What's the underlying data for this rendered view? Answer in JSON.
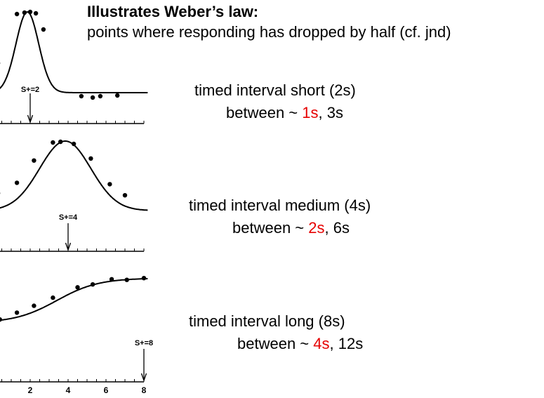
{
  "heading": {
    "title": "Illustrates Weber’s law:",
    "subtitle": "points where responding has dropped by half (cf. jnd)"
  },
  "colors": {
    "highlight": "#e60000",
    "text": "#000000"
  },
  "notes": [
    {
      "line1": "timed interval short (2s)",
      "prefix": "between ~ ",
      "highlight": "1s",
      "suffix": ", 3s"
    },
    {
      "line1": "timed interval medium (4s)",
      "prefix": "between ~ ",
      "highlight": "2s",
      "suffix": ", 6s"
    },
    {
      "line1": "timed interval long (8s)",
      "prefix": "between ~ ",
      "highlight": "4s",
      "suffix": ", 12s"
    }
  ],
  "chart_data": [
    {
      "type": "scatter",
      "marker_label": "S+=2",
      "marker_x": 2,
      "xlim": [
        0,
        8
      ],
      "points": [
        [
          0.3,
          0.27
        ],
        [
          1.3,
          0.97
        ],
        [
          1.7,
          0.99
        ],
        [
          2.0,
          1.0
        ],
        [
          2.3,
          0.98
        ],
        [
          2.7,
          0.75
        ],
        [
          4.7,
          -0.2
        ],
        [
          5.3,
          -0.22
        ],
        [
          5.7,
          -0.2
        ],
        [
          6.6,
          -0.19
        ]
      ]
    },
    {
      "type": "scatter",
      "marker_label": "S+=4",
      "marker_x": 4,
      "xlim": [
        0,
        8
      ],
      "points": [
        [
          0.3,
          0.25
        ],
        [
          1.3,
          0.4
        ],
        [
          2.2,
          0.72
        ],
        [
          3.2,
          0.98
        ],
        [
          3.6,
          0.99
        ],
        [
          4.3,
          0.96
        ],
        [
          5.2,
          0.75
        ],
        [
          6.2,
          0.38
        ],
        [
          7.0,
          0.22
        ]
      ]
    },
    {
      "type": "scatter",
      "marker_label": "S+=8",
      "marker_x": 8,
      "xlim": [
        0,
        8
      ],
      "xticks": [
        "2",
        "4",
        "6",
        "8"
      ],
      "points": [
        [
          0.4,
          0.18
        ],
        [
          1.3,
          0.3
        ],
        [
          2.2,
          0.42
        ],
        [
          3.2,
          0.56
        ],
        [
          4.5,
          0.74
        ],
        [
          5.3,
          0.79
        ],
        [
          6.3,
          0.88
        ],
        [
          7.1,
          0.87
        ],
        [
          8.0,
          0.9
        ]
      ]
    }
  ]
}
